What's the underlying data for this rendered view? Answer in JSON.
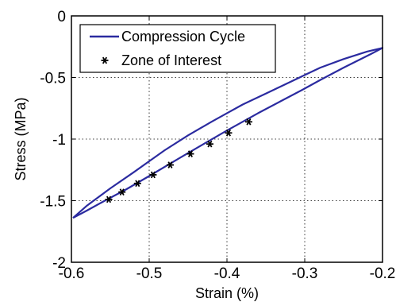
{
  "chart_data": {
    "type": "line",
    "title": "",
    "xlabel": "Strain (%)",
    "ylabel": "Stress (MPa)",
    "xlim": [
      -0.6,
      -0.2
    ],
    "ylim": [
      -2,
      0
    ],
    "x_ticks": [
      -0.6,
      -0.5,
      -0.4,
      -0.3,
      -0.2
    ],
    "x_tick_labels": [
      "-0.6",
      "-0.5",
      "-0.4",
      "-0.3",
      "-0.2"
    ],
    "y_ticks": [
      0,
      -0.5,
      -1,
      -1.5,
      -2
    ],
    "y_tick_labels": [
      "0",
      "-0.5",
      "-1",
      "-1.5",
      "-2"
    ],
    "grid": true,
    "legend_position": "top-left",
    "series": [
      {
        "name": "Compression Cycle",
        "style": "line",
        "color": "#2b2ba0",
        "x": [
          -0.598,
          -0.58,
          -0.55,
          -0.52,
          -0.5,
          -0.48,
          -0.45,
          -0.42,
          -0.4,
          -0.38,
          -0.35,
          -0.32,
          -0.3,
          -0.28,
          -0.25,
          -0.22,
          -0.2,
          -0.215,
          -0.25,
          -0.28,
          -0.3,
          -0.33,
          -0.36,
          -0.4,
          -0.43,
          -0.46,
          -0.5,
          -0.53,
          -0.56,
          -0.58,
          -0.598
        ],
        "y": [
          -1.64,
          -1.54,
          -1.4,
          -1.27,
          -1.18,
          -1.09,
          -0.97,
          -0.86,
          -0.79,
          -0.72,
          -0.63,
          -0.54,
          -0.48,
          -0.42,
          -0.35,
          -0.29,
          -0.26,
          -0.31,
          -0.42,
          -0.52,
          -0.59,
          -0.69,
          -0.79,
          -0.93,
          -1.04,
          -1.15,
          -1.3,
          -1.41,
          -1.51,
          -1.58,
          -1.64
        ]
      },
      {
        "name": "Zone of Interest",
        "style": "marker",
        "marker": "asterisk",
        "color": "#000000",
        "x": [
          -0.552,
          -0.535,
          -0.515,
          -0.495,
          -0.473,
          -0.447,
          -0.422,
          -0.398,
          -0.372
        ],
        "y": [
          -1.49,
          -1.43,
          -1.36,
          -1.29,
          -1.21,
          -1.12,
          -1.04,
          -0.95,
          -0.86
        ]
      }
    ]
  }
}
